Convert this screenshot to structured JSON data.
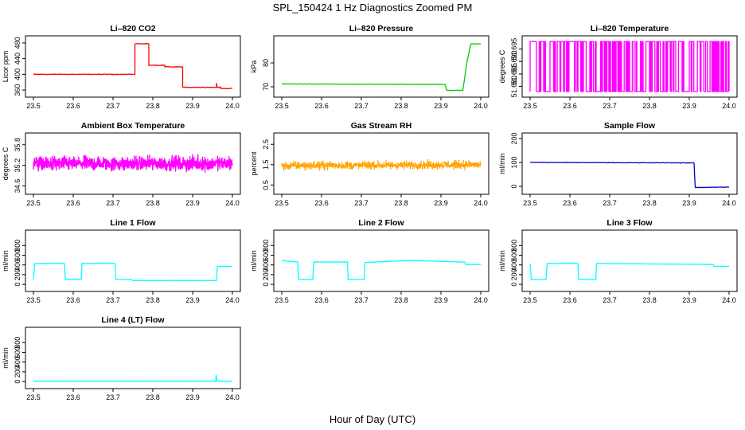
{
  "figure": {
    "title": "SPL_150424  1 Hz Diagnostics Zoomed PM",
    "xlabel": "Hour of Day (UTC)"
  },
  "chart_data": [
    {
      "type": "line",
      "title": "Li–820 CO2",
      "ylabel": "Licor ppm",
      "color": "#ff0000",
      "xlim": [
        23.5,
        24.0
      ],
      "ylim": [
        350,
        490
      ],
      "xticks": [
        "23.5",
        "23.6",
        "23.7",
        "23.8",
        "23.9",
        "24.0"
      ],
      "yticks": [
        {
          "v": 360,
          "label": "360"
        },
        {
          "v": 400,
          "label": "400"
        },
        {
          "v": 440,
          "label": "440"
        },
        {
          "v": 480,
          "label": "480"
        }
      ],
      "steps": [
        [
          23.5,
          400
        ],
        [
          23.755,
          400
        ],
        [
          23.755,
          478
        ],
        [
          23.79,
          478
        ],
        [
          23.79,
          423
        ],
        [
          23.83,
          423
        ],
        [
          23.83,
          419
        ],
        [
          23.875,
          419
        ],
        [
          23.875,
          367
        ],
        [
          23.96,
          367
        ],
        [
          23.96,
          377
        ],
        [
          23.962,
          367
        ],
        [
          23.97,
          367
        ],
        [
          23.97,
          364
        ],
        [
          24.0,
          364
        ]
      ],
      "noise": 1.2,
      "density": 300
    },
    {
      "type": "line",
      "title": "Li–820 Pressure",
      "ylabel": "kPa",
      "color": "#00cc00",
      "xlim": [
        23.5,
        24.0
      ],
      "ylim": [
        67,
        90
      ],
      "xticks": [
        "23.5",
        "23.6",
        "23.7",
        "23.8",
        "23.9",
        "24.0"
      ],
      "yticks": [
        {
          "v": 70,
          "label": "70"
        },
        {
          "v": 80,
          "label": "80"
        }
      ],
      "steps": [
        [
          23.5,
          71.2
        ],
        [
          23.91,
          71.0
        ],
        [
          23.915,
          68.5
        ],
        [
          23.955,
          68.5
        ],
        [
          23.965,
          80
        ],
        [
          23.975,
          88
        ],
        [
          24.0,
          88
        ]
      ],
      "noise": 0.15,
      "density": 300
    },
    {
      "type": "line",
      "title": "Li–820 Temperature",
      "ylabel": "degrees C",
      "color": "#ff00ff",
      "xlim": [
        23.5,
        24.0
      ],
      "ylim": [
        51.677,
        51.699
      ],
      "xticks": [
        "23.5",
        "23.6",
        "23.7",
        "23.8",
        "23.9",
        "24.0"
      ],
      "yticks": [
        {
          "v": 51.68,
          "label": "51.680"
        },
        {
          "v": 51.685,
          "label": "51.685"
        },
        {
          "v": 51.69,
          "label": "51.690"
        },
        {
          "v": 51.695,
          "label": "51.695"
        }
      ],
      "levels": [
        51.678,
        51.698
      ],
      "density": 220
    },
    {
      "type": "line",
      "title": "Ambient Box Temperature",
      "ylabel": "degrees C",
      "color": "#ff00ff",
      "xlim": [
        23.5,
        24.0
      ],
      "ylim": [
        34.45,
        36.05
      ],
      "xticks": [
        "23.5",
        "23.6",
        "23.7",
        "23.8",
        "23.9",
        "24.0"
      ],
      "yticks": [
        {
          "v": 34.6,
          "label": "34.6"
        },
        {
          "v": 35.2,
          "label": "35.2"
        },
        {
          "v": 35.8,
          "label": "35.8"
        }
      ],
      "steps": [
        [
          23.5,
          35.25
        ],
        [
          24.0,
          35.25
        ]
      ],
      "noise": 0.3,
      "density": 900
    },
    {
      "type": "line",
      "title": "Gas Stream RH",
      "ylabel": "percent",
      "color": "#ffa500",
      "xlim": [
        23.5,
        24.0
      ],
      "ylim": [
        0.2,
        2.9
      ],
      "xticks": [
        "23.5",
        "23.6",
        "23.7",
        "23.8",
        "23.9",
        "24.0"
      ],
      "yticks": [
        {
          "v": 0.5,
          "label": "0.5"
        },
        {
          "v": 1.5,
          "label": "1.5"
        },
        {
          "v": 2.5,
          "label": "2.5"
        }
      ],
      "steps": [
        [
          23.5,
          1.45
        ],
        [
          24.0,
          1.5
        ]
      ],
      "noise": 0.28,
      "density": 900,
      "points": true
    },
    {
      "type": "line",
      "title": "Sample Flow",
      "ylabel": "ml/min",
      "color": "#0000cd",
      "xlim": [
        23.5,
        24.0
      ],
      "ylim": [
        -20,
        210
      ],
      "xticks": [
        "23.5",
        "23.6",
        "23.7",
        "23.8",
        "23.9",
        "24.0"
      ],
      "yticks": [
        {
          "v": 0,
          "label": "0"
        },
        {
          "v": 100,
          "label": "100"
        },
        {
          "v": 200,
          "label": "200"
        }
      ],
      "steps": [
        [
          23.5,
          100
        ],
        [
          23.912,
          98
        ],
        [
          23.915,
          -5
        ],
        [
          24.0,
          -3
        ]
      ],
      "noise": 1.5,
      "density": 300
    },
    {
      "type": "line",
      "title": "Line 1 Flow",
      "ylabel": "ml/min",
      "color": "#00ffff",
      "xlim": [
        23.5,
        24.0
      ],
      "ylim": [
        -80,
        1050
      ],
      "xticks": [
        "23.5",
        "23.6",
        "23.7",
        "23.8",
        "23.9",
        "24.0"
      ],
      "yticks": [
        {
          "v": 0,
          "label": "0"
        },
        {
          "v": 200,
          "label": "200"
        },
        {
          "v": 400,
          "label": "400"
        },
        {
          "v": 600,
          "label": "600"
        },
        {
          "v": 800,
          "label": "800"
        }
      ],
      "steps": [
        [
          23.5,
          100
        ],
        [
          23.503,
          430
        ],
        [
          23.578,
          430
        ],
        [
          23.58,
          100
        ],
        [
          23.62,
          100
        ],
        [
          23.622,
          430
        ],
        [
          23.705,
          430
        ],
        [
          23.707,
          100
        ],
        [
          23.745,
          100
        ],
        [
          23.75,
          80
        ],
        [
          23.96,
          80
        ],
        [
          23.962,
          370
        ],
        [
          24.0,
          370
        ]
      ],
      "noise": 6,
      "density": 300
    },
    {
      "type": "line",
      "title": "Line 2 Flow",
      "ylabel": "ml/min",
      "color": "#00ffff",
      "xlim": [
        23.5,
        24.0
      ],
      "ylim": [
        -80,
        1050
      ],
      "xticks": [
        "23.5",
        "23.6",
        "23.7",
        "23.8",
        "23.9",
        "24.0"
      ],
      "yticks": [
        {
          "v": 0,
          "label": "0"
        },
        {
          "v": 200,
          "label": "200"
        },
        {
          "v": 400,
          "label": "400"
        },
        {
          "v": 600,
          "label": "600"
        },
        {
          "v": 800,
          "label": "800"
        }
      ],
      "steps": [
        [
          23.5,
          490
        ],
        [
          23.54,
          460
        ],
        [
          23.543,
          100
        ],
        [
          23.578,
          100
        ],
        [
          23.58,
          460
        ],
        [
          23.665,
          460
        ],
        [
          23.667,
          100
        ],
        [
          23.707,
          100
        ],
        [
          23.709,
          450
        ],
        [
          23.82,
          490
        ],
        [
          23.96,
          460
        ],
        [
          23.962,
          410
        ],
        [
          24.0,
          410
        ]
      ],
      "noise": 8,
      "density": 300
    },
    {
      "type": "line",
      "title": "Line 3 Flow",
      "ylabel": "ml/min",
      "color": "#00ffff",
      "xlim": [
        23.5,
        24.0
      ],
      "ylim": [
        -80,
        1050
      ],
      "xticks": [
        "23.5",
        "23.6",
        "23.7",
        "23.8",
        "23.9",
        "24.0"
      ],
      "yticks": [
        {
          "v": 0,
          "label": "0"
        },
        {
          "v": 200,
          "label": "200"
        },
        {
          "v": 400,
          "label": "400"
        },
        {
          "v": 600,
          "label": "600"
        },
        {
          "v": 800,
          "label": "800"
        }
      ],
      "steps": [
        [
          23.5,
          430
        ],
        [
          23.503,
          100
        ],
        [
          23.54,
          100
        ],
        [
          23.543,
          430
        ],
        [
          23.62,
          430
        ],
        [
          23.622,
          100
        ],
        [
          23.665,
          100
        ],
        [
          23.667,
          430
        ],
        [
          23.96,
          410
        ],
        [
          23.962,
          370
        ],
        [
          24.0,
          370
        ]
      ],
      "noise": 6,
      "density": 300
    },
    {
      "type": "line",
      "title": "Line 4 (LT) Flow",
      "ylabel": "ml/min",
      "color": "#00ffff",
      "xlim": [
        23.5,
        24.0
      ],
      "ylim": [
        -80,
        1050
      ],
      "xticks": [
        "23.5",
        "23.6",
        "23.7",
        "23.8",
        "23.9",
        "24.0"
      ],
      "yticks": [
        {
          "v": 0,
          "label": "0"
        },
        {
          "v": 200,
          "label": "200"
        },
        {
          "v": 400,
          "label": "400"
        },
        {
          "v": 600,
          "label": "600"
        },
        {
          "v": 800,
          "label": "800"
        }
      ],
      "steps": [
        [
          23.5,
          5
        ],
        [
          23.958,
          5
        ],
        [
          23.959,
          130
        ],
        [
          23.961,
          5
        ],
        [
          24.0,
          5
        ]
      ],
      "noise": 2,
      "density": 300
    }
  ]
}
